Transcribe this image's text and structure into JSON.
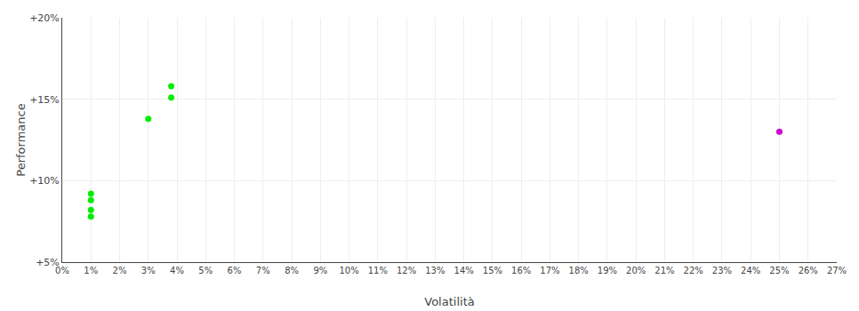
{
  "chart_data": {
    "type": "scatter",
    "x_label": "Volatilità",
    "y_label": "Performance",
    "xlim": [
      0,
      0.27
    ],
    "ylim": [
      0.05,
      0.2
    ],
    "xticks": [
      {
        "value": 0.0,
        "label": "0%"
      },
      {
        "value": 0.01,
        "label": "1%"
      },
      {
        "value": 0.02,
        "label": "2%"
      },
      {
        "value": 0.03,
        "label": "3%"
      },
      {
        "value": 0.04,
        "label": "4%"
      },
      {
        "value": 0.05,
        "label": "5%"
      },
      {
        "value": 0.06,
        "label": "6%"
      },
      {
        "value": 0.07,
        "label": "7%"
      },
      {
        "value": 0.08,
        "label": "8%"
      },
      {
        "value": 0.09,
        "label": "9%"
      },
      {
        "value": 0.1,
        "label": "10%"
      },
      {
        "value": 0.11,
        "label": "11%"
      },
      {
        "value": 0.12,
        "label": "12%"
      },
      {
        "value": 0.13,
        "label": "13%"
      },
      {
        "value": 0.14,
        "label": "14%"
      },
      {
        "value": 0.15,
        "label": "15%"
      },
      {
        "value": 0.16,
        "label": "16%"
      },
      {
        "value": 0.17,
        "label": "17%"
      },
      {
        "value": 0.18,
        "label": "18%"
      },
      {
        "value": 0.19,
        "label": "19%"
      },
      {
        "value": 0.2,
        "label": "20%"
      },
      {
        "value": 0.21,
        "label": "21%"
      },
      {
        "value": 0.22,
        "label": "22%"
      },
      {
        "value": 0.23,
        "label": "23%"
      },
      {
        "value": 0.24,
        "label": "24%"
      },
      {
        "value": 0.25,
        "label": "25%"
      },
      {
        "value": 0.26,
        "label": "26%"
      },
      {
        "value": 0.27,
        "label": "27%"
      }
    ],
    "yticks": [
      {
        "value": 0.05,
        "label": "+5%"
      },
      {
        "value": 0.1,
        "label": "+10%"
      },
      {
        "value": 0.15,
        "label": "+15%"
      },
      {
        "value": 0.2,
        "label": "+20%"
      }
    ],
    "grid": true,
    "series": [
      {
        "color": "#00ee00",
        "x": [
          0.01,
          0.01,
          0.01,
          0.01,
          0.03,
          0.038,
          0.038
        ],
        "values": [
          0.092,
          0.088,
          0.082,
          0.078,
          0.138,
          0.158,
          0.151
        ]
      },
      {
        "color": "#cc00cc",
        "x": [
          0.25
        ],
        "values": [
          0.13
        ]
      }
    ]
  }
}
